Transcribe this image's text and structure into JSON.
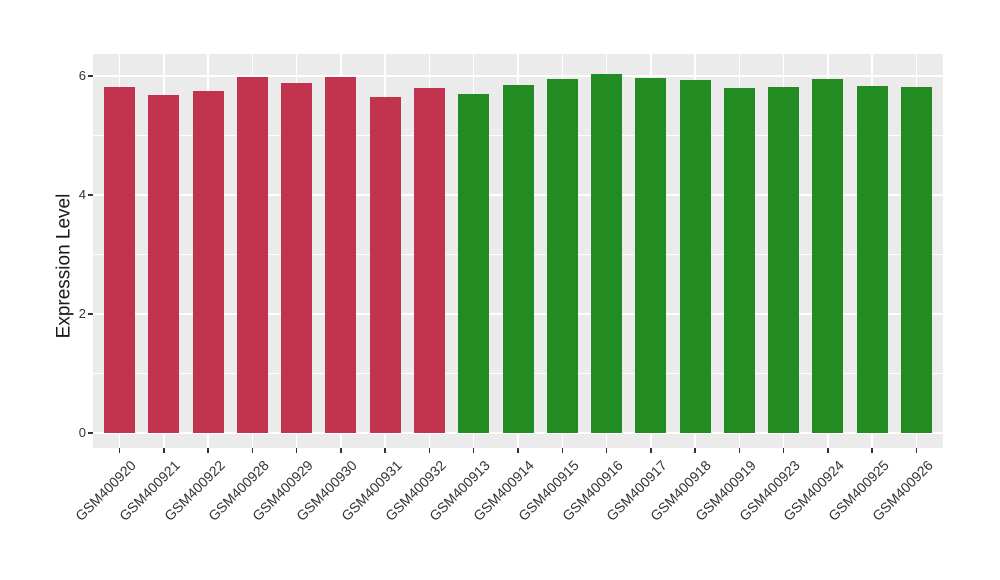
{
  "chart_data": {
    "type": "bar",
    "title": "",
    "xlabel": "",
    "ylabel": "Expression Level",
    "categories": [
      "GSM400920",
      "GSM400921",
      "GSM400922",
      "GSM400928",
      "GSM400929",
      "GSM400930",
      "GSM400931",
      "GSM400932",
      "GSM400913",
      "GSM400914",
      "GSM400915",
      "GSM400916",
      "GSM400917",
      "GSM400918",
      "GSM400919",
      "GSM400923",
      "GSM400924",
      "GSM400925",
      "GSM400926"
    ],
    "values": [
      5.81,
      5.68,
      5.75,
      5.99,
      5.88,
      5.98,
      5.64,
      5.79,
      5.7,
      5.85,
      5.95,
      6.03,
      5.97,
      5.93,
      5.79,
      5.81,
      5.95,
      5.84,
      5.82
    ],
    "bar_colors": [
      "#C2344E",
      "#C2344E",
      "#C2344E",
      "#C2344E",
      "#C2344E",
      "#C2344E",
      "#C2344E",
      "#C2344E",
      "#228B22",
      "#228B22",
      "#228B22",
      "#228B22",
      "#228B22",
      "#228B22",
      "#228B22",
      "#228B22",
      "#228B22",
      "#228B22",
      "#228B22"
    ],
    "groups": [
      {
        "color": "#C2344E",
        "samples": [
          "GSM400920",
          "GSM400921",
          "GSM400922",
          "GSM400928",
          "GSM400929",
          "GSM400930",
          "GSM400931",
          "GSM400932"
        ]
      },
      {
        "color": "#228B22",
        "samples": [
          "GSM400913",
          "GSM400914",
          "GSM400915",
          "GSM400916",
          "GSM400917",
          "GSM400918",
          "GSM400919",
          "GSM400923",
          "GSM400924",
          "GSM400925",
          "GSM400926"
        ]
      }
    ],
    "yticks": [
      0,
      2,
      4,
      6
    ],
    "ytick_labels": [
      "0",
      "2",
      "4",
      "6"
    ],
    "yminor": [
      1,
      3,
      5
    ],
    "ylim": [
      -0.3,
      6.35
    ],
    "grid": true,
    "legend_position": "none",
    "panel_background": "#EBEBEB",
    "grid_color": "#FFFFFF"
  }
}
